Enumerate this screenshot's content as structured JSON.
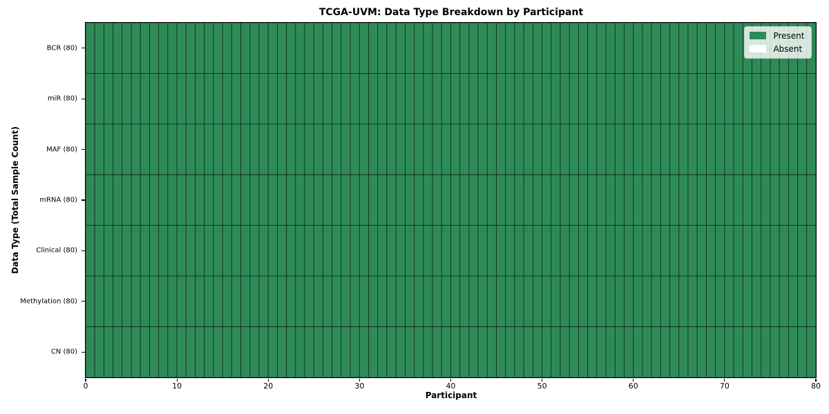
{
  "chart_data": {
    "type": "heatmap",
    "title": "TCGA-UVM: Data Type Breakdown by Participant",
    "xlabel": "Participant",
    "ylabel": "Data Type (Total Sample Count)",
    "xlim": [
      0,
      80
    ],
    "x_ticks": [
      0,
      10,
      20,
      30,
      40,
      50,
      60,
      70,
      80
    ],
    "n_participants": 80,
    "rows": [
      {
        "label": "BCR (80)",
        "total": 80,
        "present_count": 80,
        "absent_count": 0
      },
      {
        "label": "miR (80)",
        "total": 80,
        "present_count": 80,
        "absent_count": 0
      },
      {
        "label": "MAF (80)",
        "total": 80,
        "present_count": 80,
        "absent_count": 0
      },
      {
        "label": "mRNA (80)",
        "total": 80,
        "present_count": 80,
        "absent_count": 0
      },
      {
        "label": "Clinical (80)",
        "total": 80,
        "present_count": 80,
        "absent_count": 0
      },
      {
        "label": "Methylation (80)",
        "total": 80,
        "present_count": 80,
        "absent_count": 0
      },
      {
        "label": "CN (80)",
        "total": 80,
        "present_count": 80,
        "absent_count": 0
      }
    ],
    "legend": [
      {
        "label": "Present",
        "color": "#2e8b57"
      },
      {
        "label": "Absent",
        "color": "#ffffff"
      }
    ],
    "legend_position": "upper right",
    "colors": {
      "present": "#2e8b57",
      "absent": "#ffffff",
      "cell_edge": "#000000",
      "spine": "#000000"
    },
    "grid": "per-cell borders"
  }
}
